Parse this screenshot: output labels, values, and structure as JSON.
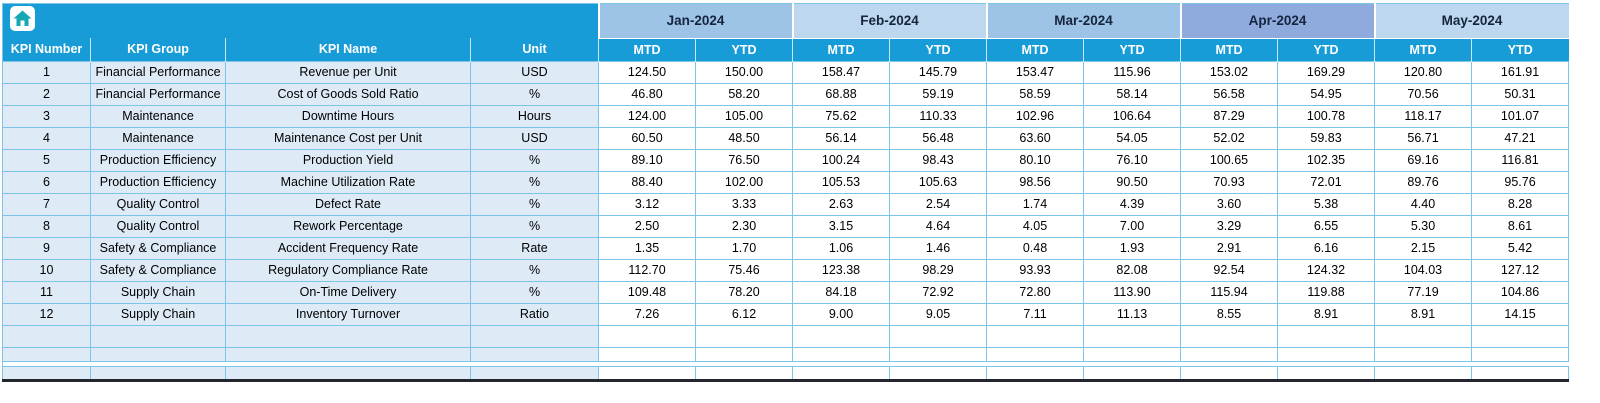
{
  "table": {
    "corner": {
      "icon": "home-icon"
    },
    "left_headers": [
      "KPI Number",
      "KPI Group",
      "KPI Name",
      "Unit"
    ],
    "subheaders": [
      "MTD",
      "YTD"
    ],
    "months": [
      {
        "label": "Jan-2024",
        "shade": "medium"
      },
      {
        "label": "Feb-2024",
        "shade": "light"
      },
      {
        "label": "Mar-2024",
        "shade": "medium"
      },
      {
        "label": "Apr-2024",
        "shade": "dark"
      },
      {
        "label": "May-2024",
        "shade": "light"
      }
    ],
    "rows": [
      {
        "number": "1",
        "group": "Financial Performance",
        "name": "Revenue per Unit",
        "unit": "USD",
        "values": [
          "124.50",
          "150.00",
          "158.47",
          "145.79",
          "153.47",
          "115.96",
          "153.02",
          "169.29",
          "120.80",
          "161.91"
        ]
      },
      {
        "number": "2",
        "group": "Financial Performance",
        "name": "Cost of Goods Sold Ratio",
        "unit": "%",
        "values": [
          "46.80",
          "58.20",
          "68.88",
          "59.19",
          "58.59",
          "58.14",
          "56.58",
          "54.95",
          "70.56",
          "50.31"
        ]
      },
      {
        "number": "3",
        "group": "Maintenance",
        "name": "Downtime Hours",
        "unit": "Hours",
        "values": [
          "124.00",
          "105.00",
          "75.62",
          "110.33",
          "102.96",
          "106.64",
          "87.29",
          "100.78",
          "118.17",
          "101.07"
        ]
      },
      {
        "number": "4",
        "group": "Maintenance",
        "name": "Maintenance Cost per Unit",
        "unit": "USD",
        "values": [
          "60.50",
          "48.50",
          "56.14",
          "56.48",
          "63.60",
          "54.05",
          "52.02",
          "59.83",
          "56.71",
          "47.21"
        ]
      },
      {
        "number": "5",
        "group": "Production Efficiency",
        "name": "Production Yield",
        "unit": "%",
        "values": [
          "89.10",
          "76.50",
          "100.24",
          "98.43",
          "80.10",
          "76.10",
          "100.65",
          "102.35",
          "69.16",
          "116.81"
        ]
      },
      {
        "number": "6",
        "group": "Production Efficiency",
        "name": "Machine Utilization Rate",
        "unit": "%",
        "values": [
          "88.40",
          "102.00",
          "105.53",
          "105.63",
          "98.56",
          "90.50",
          "70.93",
          "72.01",
          "89.76",
          "95.76"
        ]
      },
      {
        "number": "7",
        "group": "Quality Control",
        "name": "Defect Rate",
        "unit": "%",
        "values": [
          "3.12",
          "3.33",
          "2.63",
          "2.54",
          "1.74",
          "4.39",
          "3.60",
          "5.38",
          "4.40",
          "8.28"
        ]
      },
      {
        "number": "8",
        "group": "Quality Control",
        "name": "Rework Percentage",
        "unit": "%",
        "values": [
          "2.50",
          "2.30",
          "3.15",
          "4.64",
          "4.05",
          "7.00",
          "3.29",
          "6.55",
          "5.30",
          "8.61"
        ]
      },
      {
        "number": "9",
        "group": "Safety & Compliance",
        "name": "Accident Frequency Rate",
        "unit": "Rate",
        "values": [
          "1.35",
          "1.70",
          "1.06",
          "1.46",
          "0.48",
          "1.93",
          "2.91",
          "6.16",
          "2.15",
          "5.42"
        ]
      },
      {
        "number": "10",
        "group": "Safety & Compliance",
        "name": "Regulatory Compliance Rate",
        "unit": "%",
        "values": [
          "112.70",
          "75.46",
          "123.38",
          "98.29",
          "93.93",
          "82.08",
          "92.54",
          "124.32",
          "104.03",
          "127.12"
        ]
      },
      {
        "number": "11",
        "group": "Supply Chain",
        "name": "On-Time Delivery",
        "unit": "%",
        "values": [
          "109.48",
          "78.20",
          "84.18",
          "72.92",
          "72.80",
          "113.90",
          "115.94",
          "119.88",
          "77.19",
          "104.86"
        ]
      },
      {
        "number": "12",
        "group": "Supply Chain",
        "name": "Inventory Turnover",
        "unit": "Ratio",
        "values": [
          "7.26",
          "6.12",
          "9.00",
          "9.05",
          "7.11",
          "11.13",
          "8.55",
          "8.91",
          "8.91",
          "14.15"
        ]
      }
    ],
    "empty_rows": 3,
    "colors": {
      "header_cyan": "#189CD8",
      "month_medium": "#9DC3E6",
      "month_light": "#BDD7EE",
      "month_dark": "#8FAADC",
      "left_cell_bg": "#DEEBF7",
      "grid_border": "#7CC5E9",
      "bottom_frame": "#23262D"
    }
  }
}
